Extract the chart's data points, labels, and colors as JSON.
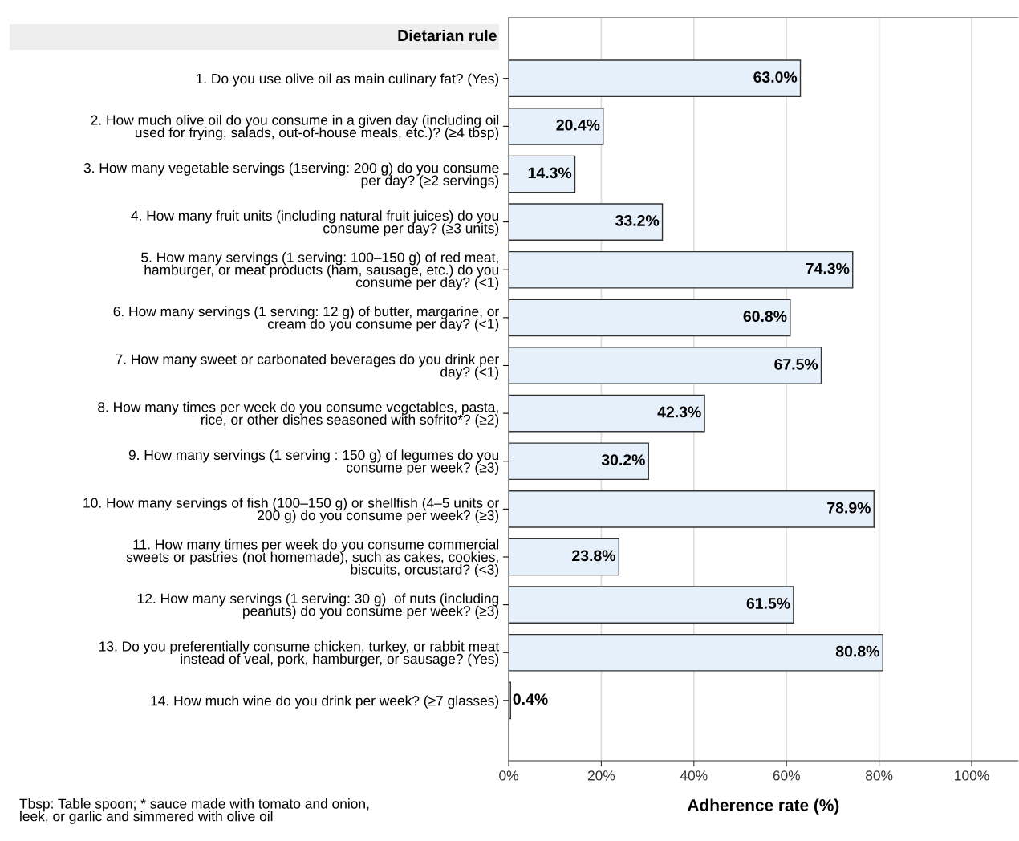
{
  "chart_data": {
    "type": "bar",
    "orientation": "horizontal",
    "ylabel": "Dietarian rule",
    "xlabel": "Adherence rate (%)",
    "categories": [
      "1. Do you use olive oil as main culinary fat? (Yes)",
      "2. How much olive oil do you consume in a given day (including oil\nused for frying, salads, out-of-house meals, etc.)? (≥4 tbsp)",
      "3. How many vegetable servings (1serving: 200 g) do you consume\nper day? (≥2 servings)",
      "4. How many fruit units (including natural fruit juices) do you\nconsume per day? (≥3 units)",
      "5. How many servings (1 serving: 100–150 g) of red meat,\nhamburger, or meat products (ham, sausage, etc.) do you\nconsume per day? (<1)",
      "6. How many servings (1 serving: 12 g) of butter, margarine, or\ncream do you consume per day? (<1)",
      "7. How many sweet or carbonated beverages do you drink per\nday? (<1)",
      "8. How many times per week do you consume vegetables, pasta,\nrice, or other dishes seasoned with sofrito*? (≥2)",
      "9. How many servings (1 serving : 150 g) of legumes do you\nconsume per week? (≥3)",
      "10. How many servings of fish (100–150 g) or shellfish (4–5 units or\n200 g) do you consume per week? (≥3)",
      "11. How many times per week do you consume commercial\nsweets or pastries (not homemade), such as cakes, cookies,\nbiscuits, orcustard? (<3)",
      "12. How many servings (1 serving: 30 g)  of nuts (including\npeanuts) do you consume per week? (≥3)",
      "13. Do you preferentially consume chicken, turkey, or rabbit meat\ninstead of veal, pork, hamburger, or sausage? (Yes)",
      "14. How much wine do you drink per week? (≥7 glasses)"
    ],
    "values": [
      63.0,
      20.4,
      14.3,
      33.2,
      74.3,
      60.8,
      67.5,
      42.3,
      30.2,
      78.9,
      23.8,
      61.5,
      80.8,
      0.4
    ],
    "value_labels": [
      "63.0%",
      "20.4%",
      "14.3%",
      "33.2%",
      "74.3%",
      "60.8%",
      "67.5%",
      "42.3%",
      "30.2%",
      "78.9%",
      "23.8%",
      "61.5%",
      "80.8%",
      "0.4%"
    ],
    "color": "#e6f0fa",
    "xlim": [
      0,
      110
    ],
    "xticks": [
      {
        "value": 0,
        "label": "0%"
      },
      {
        "value": 20,
        "label": "20%"
      },
      {
        "value": 40,
        "label": "40%"
      },
      {
        "value": 60,
        "label": "60%"
      },
      {
        "value": 80,
        "label": "80%"
      },
      {
        "value": 100,
        "label": "100%"
      }
    ],
    "grid": "x",
    "annotations": [
      "Tbsp: Table spoon; * sauce made with tomato and onion,\nleek, or garlic and simmered with olive oil"
    ]
  }
}
